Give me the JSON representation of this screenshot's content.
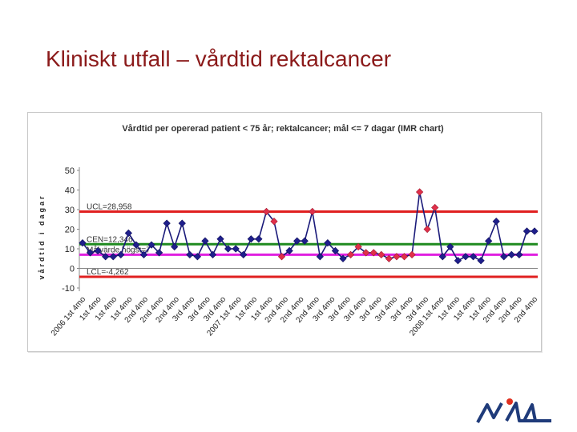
{
  "slide": {
    "title": "Kliniskt utfall – vårdtid rektalcancer"
  },
  "chart_data": {
    "type": "line",
    "title": "Vårdtid per opererad patient < 75 år; rektalcancer; mål <= 7 dagar  (IMR chart)",
    "ylabel": "vårdtid i dagar",
    "xlabel": "",
    "ylim": [
      -10,
      50
    ],
    "yticks": [
      -10,
      0,
      10,
      20,
      30,
      40,
      50
    ],
    "grid": false,
    "legend": "none",
    "x": [
      "2006 1st 4mo",
      "1st 4mo",
      "1st 4mo",
      "1st 4mo",
      "1st 4mo",
      "1st 4mo",
      "1st 4mo",
      "1st 4mo",
      "2nd 4mo",
      "2nd 4mo",
      "2nd 4mo",
      "2nd 4mo",
      "2nd 4mo",
      "3rd 4mo",
      "3rd 4mo",
      "3rd 4mo",
      "3rd 4mo",
      "3rd 4mo",
      "3rd 4mo",
      "3rd 4mo",
      "2007 1st 4mo",
      "1st 4mo",
      "1st 4mo",
      "1st 4mo",
      "1st 4mo",
      "1st 4mo",
      "2nd 4mo",
      "2nd 4mo",
      "2nd 4mo",
      "2nd 4mo",
      "2nd 4mo",
      "2nd 4mo",
      "3rd 4mo",
      "3rd 4mo",
      "3rd 4mo",
      "3rd 4mo",
      "3rd 4mo",
      "3rd 4mo",
      "3rd 4mo",
      "3rd 4mo",
      "3rd 4mo",
      "3rd 4mo",
      "3rd 4mo",
      "3rd 4mo",
      "3rd 4mo",
      "2008 1st 4mo",
      "1st 4mo",
      "1st 4mo",
      "1st 4mo",
      "1st 4mo",
      "1st 4mo",
      "1st 4mo",
      "2nd 4mo",
      "2nd 4mo",
      "2nd 4mo",
      "2nd 4mo",
      "2nd 4mo",
      "2nd 4mo",
      "2nd 4mo",
      "2nd 4mo"
    ],
    "x_tick_labels": [
      "2006 1st 4mo",
      "1st 4mo",
      "1st 4mo",
      "1st 4mo",
      "2nd 4mo",
      "2nd 4mo",
      "2nd 4mo",
      "3rd 4mo",
      "3rd 4mo",
      "3rd 4mo",
      "2007 1st 4mo",
      "1st 4mo",
      "1st 4mo",
      "2nd 4mo",
      "2nd 4mo",
      "2nd 4mo",
      "3rd 4mo",
      "3rd 4mo",
      "3rd 4mo",
      "3rd 4mo",
      "3rd 4mo",
      "3rd 4mo",
      "3rd 4mo",
      "2008 1st 4mo",
      "1st 4mo",
      "1st 4mo",
      "1st 4mo",
      "2nd 4mo",
      "2nd 4mo",
      "2nd 4mo"
    ],
    "series": [
      {
        "values": [
          13,
          8,
          9,
          6,
          6,
          7,
          18,
          12,
          7,
          12,
          8,
          23,
          11,
          23,
          7,
          6,
          14,
          7,
          15,
          10,
          10,
          7,
          15,
          15,
          29,
          24,
          6,
          9,
          14,
          14,
          29,
          6,
          13,
          9,
          5,
          7,
          11,
          8,
          8,
          7,
          5,
          6,
          6,
          7,
          39,
          20,
          31,
          6,
          11,
          4,
          6,
          6,
          4,
          14,
          24,
          6,
          7,
          7,
          19,
          19
        ],
        "color": "#1a1a7a",
        "marker": "diamond",
        "marker_color": "#1f1f8c"
      }
    ],
    "highlighted_points": {
      "indices": [
        24,
        25,
        26,
        30,
        35,
        36,
        37,
        38,
        39,
        40,
        41,
        42,
        43,
        44,
        45,
        46
      ],
      "color": "#e0304a"
    },
    "control_lines": [
      {
        "label": "UCL=28,958",
        "value": 28.958,
        "color": "#e02020"
      },
      {
        "label": "CEN=12,346",
        "value": 12.346,
        "color": "#1e8a1e"
      },
      {
        "label": "Målvärde högst=7",
        "value": 7,
        "color": "#e020e0"
      },
      {
        "label": "LCL=-4,262",
        "value": -4.262,
        "color": "#e02020"
      }
    ]
  }
}
